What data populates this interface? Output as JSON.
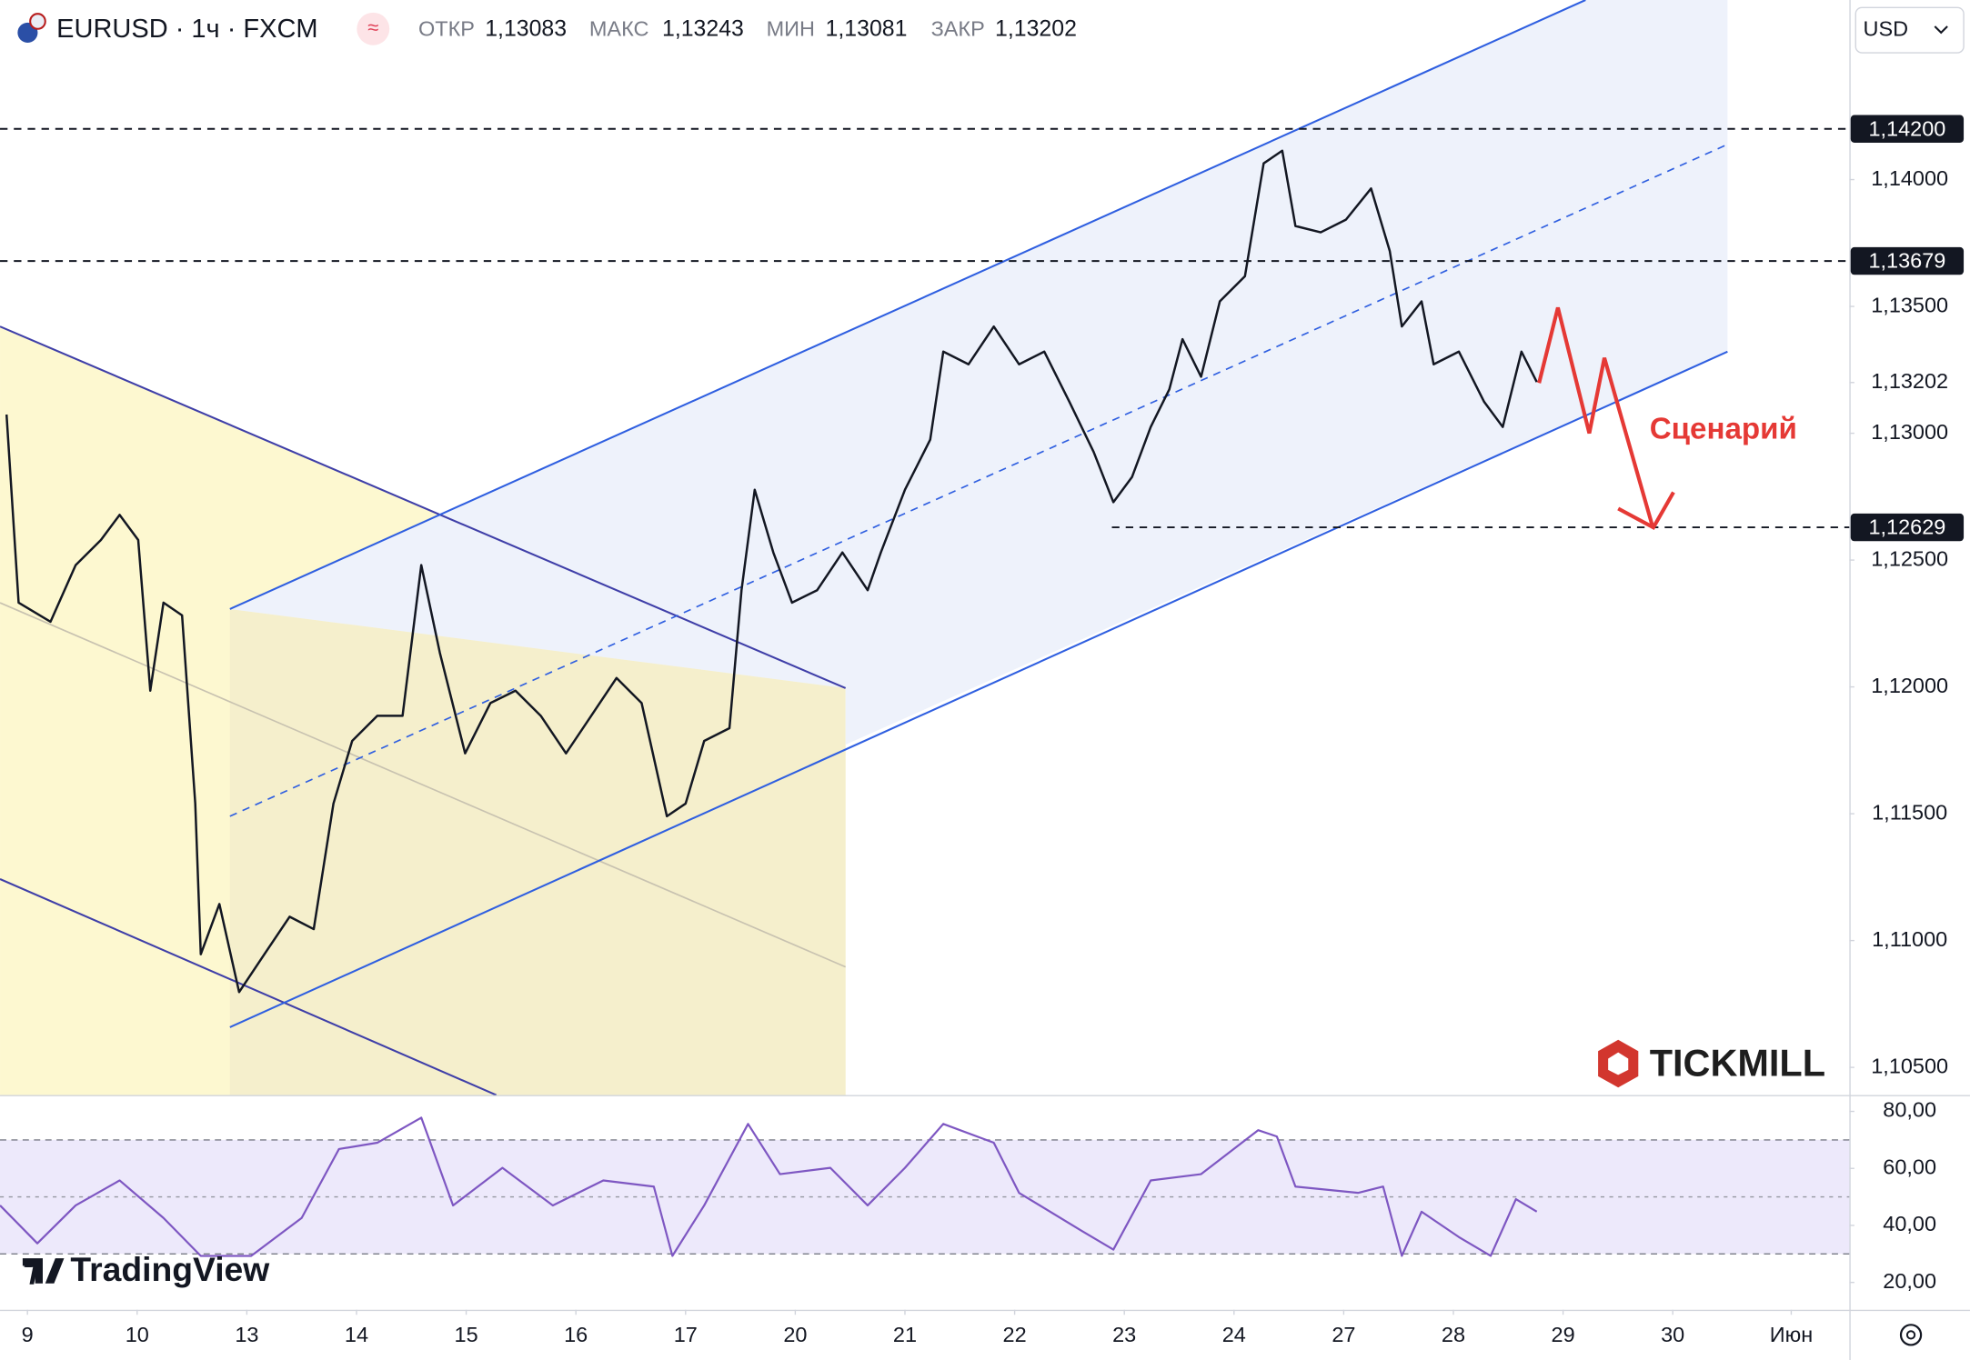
{
  "header": {
    "symbol": "EURUSD · 1ч · FXCM",
    "open_label": "ОТКР",
    "open": "1,13083",
    "high_label": "МАКС",
    "high": "1,13243",
    "low_label": "МИН",
    "low": "1,13081",
    "close_label": "ЗАКР",
    "close": "1,13202"
  },
  "currency": "USD",
  "annotation": "Сценарий",
  "brand": "TICKMILL",
  "watermark": "TradingView",
  "chart_data": [
    {
      "type": "line",
      "color": "#131722",
      "xlim": [
        -0.25,
        16.61
      ],
      "ylim": [
        1.10391,
        1.14708
      ],
      "xticks": [
        {
          "value": 0,
          "label": "9"
        },
        {
          "value": 1,
          "label": "10"
        },
        {
          "value": 2,
          "label": "13"
        },
        {
          "value": 3,
          "label": "14"
        },
        {
          "value": 4,
          "label": "15"
        },
        {
          "value": 5,
          "label": "16"
        },
        {
          "value": 6,
          "label": "17"
        },
        {
          "value": 7,
          "label": "20"
        },
        {
          "value": 8,
          "label": "21"
        },
        {
          "value": 9,
          "label": "22"
        },
        {
          "value": 10,
          "label": "23"
        },
        {
          "value": 11,
          "label": "24"
        },
        {
          "value": 12,
          "label": "27"
        },
        {
          "value": 13,
          "label": "28"
        },
        {
          "value": 14,
          "label": "29"
        },
        {
          "value": 15,
          "label": "30"
        },
        {
          "value": 16.08,
          "label": "Июн"
        }
      ],
      "yticks": [
        {
          "value": 1.105,
          "label": "1,10500"
        },
        {
          "value": 1.11,
          "label": "1,11000"
        },
        {
          "value": 1.115,
          "label": "1,11500"
        },
        {
          "value": 1.12,
          "label": "1,12000"
        },
        {
          "value": 1.125,
          "label": "1,12500"
        },
        {
          "value": 1.13,
          "label": "1,13000"
        },
        {
          "value": 1.132,
          "label": "1,13202"
        },
        {
          "value": 1.135,
          "label": "1,13500"
        },
        {
          "value": 1.14,
          "label": "1,14000"
        }
      ],
      "levels": [
        {
          "value": 1.142,
          "label": "1,14200"
        },
        {
          "value": 1.13679,
          "label": "1,13679"
        },
        {
          "value": 1.12629,
          "label": "1,12629"
        }
      ],
      "x": [
        -0.19,
        -0.08,
        0.21,
        0.44,
        0.67,
        0.84,
        1.01,
        1.12,
        1.24,
        1.41,
        1.53,
        1.58,
        1.75,
        1.93,
        2.16,
        2.39,
        2.61,
        2.79,
        2.96,
        3.19,
        3.42,
        3.59,
        3.76,
        3.99,
        4.22,
        4.45,
        4.68,
        4.91,
        5.14,
        5.37,
        5.6,
        5.83,
        6.0,
        6.17,
        6.4,
        6.51,
        6.63,
        6.8,
        6.97,
        7.2,
        7.43,
        7.66,
        7.78,
        8.0,
        8.23,
        8.35,
        8.58,
        8.81,
        9.04,
        9.27,
        9.5,
        9.72,
        9.9,
        10.07,
        10.24,
        10.41,
        10.53,
        10.7,
        10.87,
        11.1,
        11.27,
        11.44,
        11.56,
        11.79,
        12.02,
        12.25,
        12.42,
        12.53,
        12.71,
        12.82,
        13.05,
        13.28,
        13.45,
        13.62,
        13.76
      ],
      "values": [
        1.13074,
        1.12332,
        1.12257,
        1.1248,
        1.12579,
        1.12678,
        1.12579,
        1.11985,
        1.12332,
        1.12282,
        1.1154,
        1.10946,
        1.11144,
        1.10797,
        1.10946,
        1.11094,
        1.11045,
        1.1154,
        1.11787,
        1.11886,
        1.11886,
        1.1248,
        1.12134,
        1.11738,
        1.11936,
        1.11985,
        1.11886,
        1.11738,
        1.11886,
        1.12035,
        1.11936,
        1.1149,
        1.1154,
        1.11787,
        1.11837,
        1.12381,
        1.12777,
        1.1253,
        1.12332,
        1.12381,
        1.1253,
        1.12381,
        1.1253,
        1.12777,
        1.12975,
        1.13322,
        1.13272,
        1.13421,
        1.13272,
        1.13322,
        1.13124,
        1.12926,
        1.12728,
        1.12827,
        1.13025,
        1.13173,
        1.13371,
        1.13223,
        1.1352,
        1.13619,
        1.14064,
        1.14114,
        1.13817,
        1.13792,
        1.13842,
        1.13965,
        1.13718,
        1.13421,
        1.1352,
        1.13272,
        1.13322,
        1.13124,
        1.13025,
        1.13322,
        1.13202
      ]
    },
    {
      "type": "line",
      "color": "#7e57c2",
      "xlim": [
        -0.25,
        16.61
      ],
      "ylim": [
        10.4,
        85.3
      ],
      "yticks": [
        {
          "value": 20,
          "label": "20,00"
        },
        {
          "value": 40,
          "label": "40,00"
        },
        {
          "value": 60,
          "label": "60,00"
        },
        {
          "value": 80,
          "label": "80,00"
        }
      ],
      "bands": [
        30,
        70
      ],
      "midline": 50,
      "x": [
        -0.25,
        0.09,
        0.44,
        0.84,
        1.24,
        1.58,
        2.04,
        2.5,
        2.84,
        3.19,
        3.59,
        3.88,
        4.33,
        4.79,
        5.25,
        5.71,
        5.88,
        6.17,
        6.57,
        6.86,
        7.32,
        7.66,
        8.0,
        8.35,
        8.81,
        9.04,
        9.61,
        9.9,
        10.24,
        10.7,
        11.22,
        11.39,
        11.56,
        12.13,
        12.36,
        12.53,
        12.71,
        13.05,
        13.34,
        13.57,
        13.76
      ],
      "values": [
        47.0,
        33.7,
        47.0,
        55.8,
        42.6,
        29.3,
        29.3,
        42.6,
        66.8,
        69.0,
        77.8,
        47.0,
        60.2,
        47.0,
        55.8,
        53.6,
        29.3,
        47.0,
        75.6,
        58.0,
        60.2,
        47.0,
        60.2,
        75.6,
        69.0,
        51.4,
        38.1,
        31.5,
        55.8,
        58.0,
        73.4,
        71.2,
        53.6,
        51.4,
        53.6,
        29.3,
        44.8,
        35.9,
        29.3,
        49.2,
        44.8
      ]
    }
  ]
}
